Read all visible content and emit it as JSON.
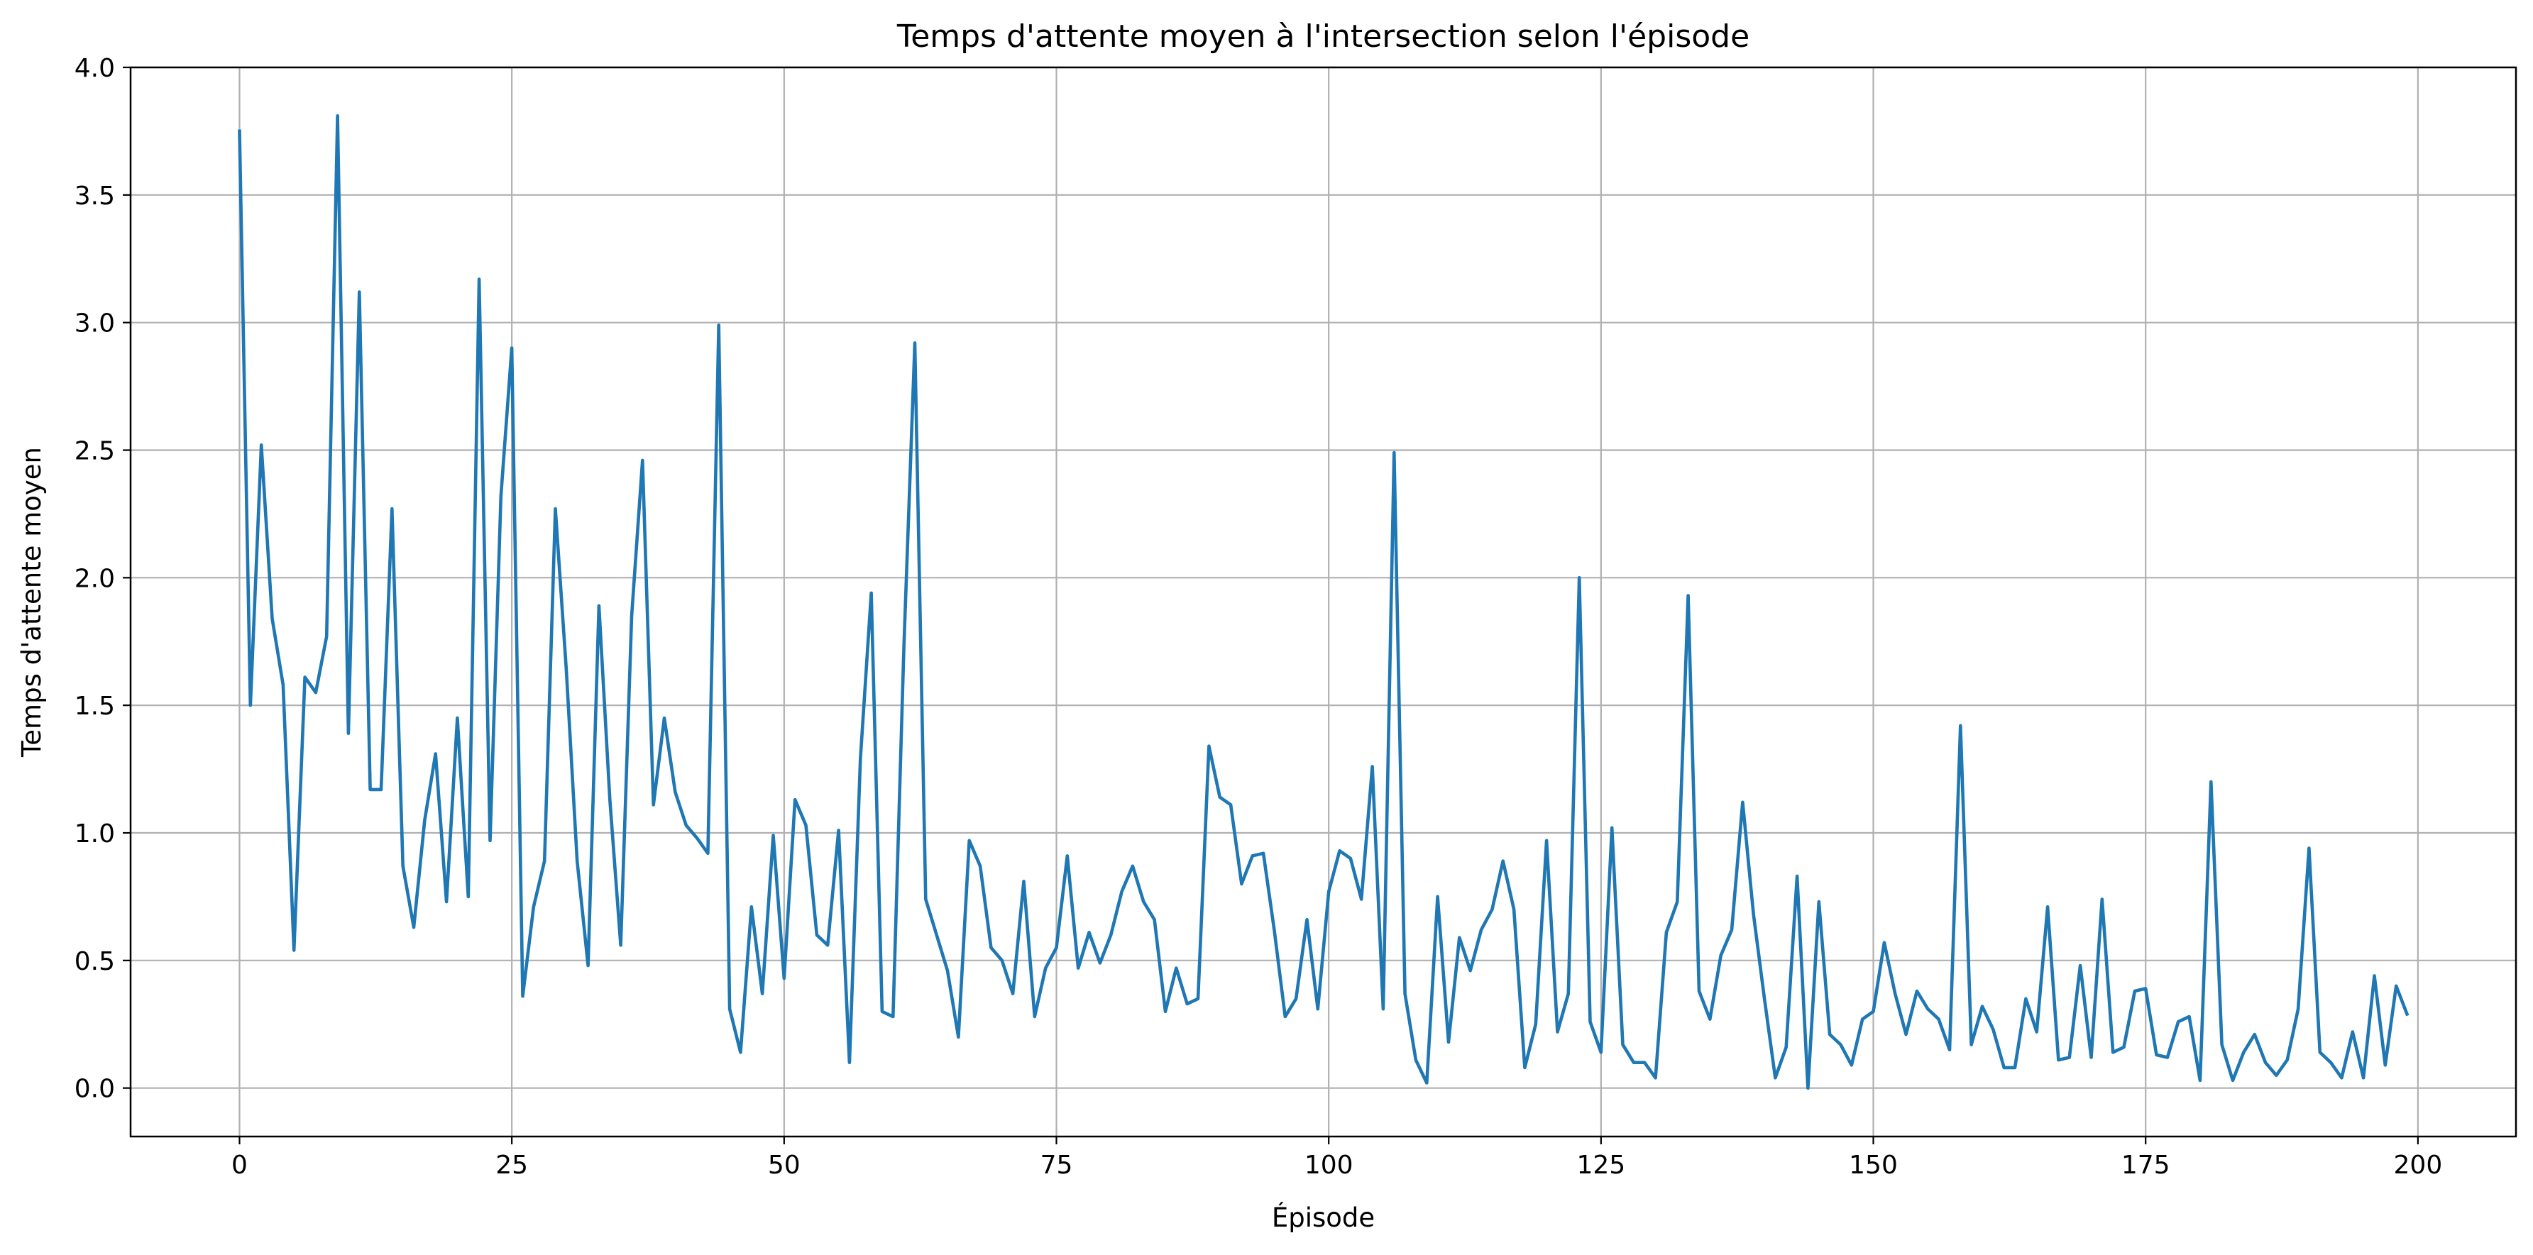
{
  "chart_data": {
    "type": "line",
    "title": "Temps d'attente moyen à l'intersection selon l'épisode",
    "xlabel": "Épisode",
    "ylabel": "Temps d'attente moyen",
    "xlim": [
      -10,
      209
    ],
    "ylim": [
      -0.19,
      4.0
    ],
    "xticks": [
      0,
      25,
      50,
      75,
      100,
      125,
      150,
      175,
      200
    ],
    "yticks": [
      0.0,
      0.5,
      1.0,
      1.5,
      2.0,
      2.5,
      3.0,
      3.5,
      4.0
    ],
    "xtick_labels": [
      "0",
      "25",
      "50",
      "75",
      "100",
      "125",
      "150",
      "175",
      "200"
    ],
    "ytick_labels": [
      "0.0",
      "0.5",
      "1.0",
      "1.5",
      "2.0",
      "2.5",
      "3.0",
      "3.5",
      "4.0"
    ],
    "grid": true,
    "colors": {
      "line": "#1f77b4",
      "grid": "#b0b0b0",
      "axes": "#000000"
    },
    "series": [
      {
        "x_start": 0,
        "values": [
          3.75,
          1.5,
          2.52,
          1.84,
          1.58,
          0.54,
          1.61,
          1.55,
          1.77,
          3.81,
          1.39,
          3.12,
          1.17,
          1.17,
          2.27,
          0.87,
          0.63,
          1.05,
          1.31,
          0.73,
          1.45,
          0.75,
          3.17,
          0.97,
          2.32,
          2.9,
          0.36,
          0.71,
          0.89,
          2.27,
          1.64,
          0.89,
          0.48,
          1.89,
          1.13,
          0.56,
          1.85,
          2.46,
          1.11,
          1.45,
          1.16,
          1.03,
          0.98,
          0.92,
          2.99,
          0.31,
          0.14,
          0.71,
          0.37,
          0.99,
          0.43,
          1.13,
          1.03,
          0.6,
          0.56,
          1.01,
          0.1,
          1.29,
          1.94,
          0.3,
          0.28,
          1.73,
          2.92,
          0.74,
          0.6,
          0.46,
          0.2,
          0.97,
          0.87,
          0.55,
          0.5,
          0.37,
          0.81,
          0.28,
          0.47,
          0.55,
          0.91,
          0.47,
          0.61,
          0.49,
          0.6,
          0.77,
          0.87,
          0.73,
          0.66,
          0.3,
          0.47,
          0.33,
          0.35,
          1.34,
          1.14,
          1.11,
          0.8,
          0.91,
          0.92,
          0.62,
          0.28,
          0.35,
          0.66,
          0.31,
          0.77,
          0.93,
          0.9,
          0.74,
          1.26,
          0.31,
          2.49,
          0.37,
          0.11,
          0.02,
          0.75,
          0.18,
          0.59,
          0.46,
          0.62,
          0.7,
          0.89,
          0.7,
          0.08,
          0.25,
          0.97,
          0.22,
          0.37,
          2.0,
          0.26,
          0.14,
          1.02,
          0.17,
          0.1,
          0.1,
          0.04,
          0.61,
          0.73,
          1.93,
          0.38,
          0.27,
          0.52,
          0.62,
          1.12,
          0.68,
          0.35,
          0.04,
          0.16,
          0.83,
          0.0,
          0.73,
          0.21,
          0.17,
          0.09,
          0.27,
          0.3,
          0.57,
          0.37,
          0.21,
          0.38,
          0.31,
          0.27,
          0.15,
          1.42,
          0.17,
          0.32,
          0.23,
          0.08,
          0.08,
          0.35,
          0.22,
          0.71,
          0.11,
          0.12,
          0.48,
          0.12,
          0.74,
          0.14,
          0.16,
          0.38,
          0.39,
          0.13,
          0.12,
          0.26,
          0.28,
          0.03,
          1.2,
          0.17,
          0.03,
          0.14,
          0.21,
          0.1,
          0.05,
          0.11,
          0.31,
          0.94,
          0.14,
          0.1,
          0.04,
          0.22,
          0.04,
          0.44,
          0.09,
          0.4,
          0.29
        ]
      }
    ]
  }
}
